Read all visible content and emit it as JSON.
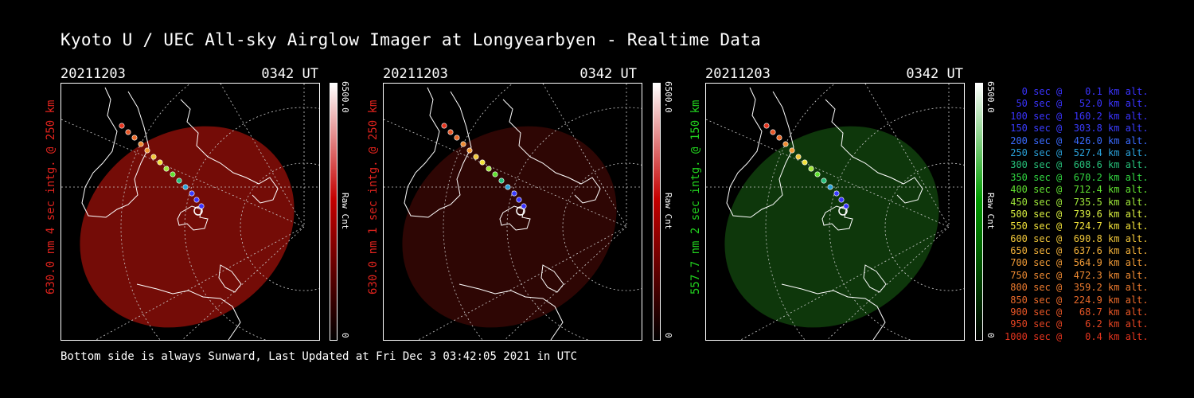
{
  "title": "Kyoto U / UEC All-sky Airglow Imager at Longyearbyen - Realtime Data",
  "footer": "Bottom side is always Sunward, Last Updated at Fri Dec  3 03:42:05 2021 in UTC",
  "panels": [
    {
      "date": "20211203",
      "time": "0342 UT",
      "side_label": "630.0 nm 4 sec intg. @ 250 km",
      "side_color": "#e0231d",
      "cbar_max": "6500.0",
      "cbar_min": "0",
      "cbar_unit": "Raw Cnt",
      "glow_color": "#7a0d07",
      "cbar_color": "#c40000"
    },
    {
      "date": "20211203",
      "time": "0342 UT",
      "side_label": "630.0 nm 1 sec intg. @ 250 km",
      "side_color": "#e0231d",
      "cbar_max": "6500.0",
      "cbar_min": "0",
      "cbar_unit": "Raw Cnt",
      "glow_color": "#300604",
      "cbar_color": "#c40000"
    },
    {
      "date": "20211203",
      "time": "0342 UT",
      "side_label": "557.7 nm 2 sec intg. @ 150 km",
      "side_color": "#21d11e",
      "cbar_max": "6500.0",
      "cbar_min": "0",
      "cbar_unit": "Raw Cnt",
      "glow_color": "#0f3a0c",
      "cbar_color": "#009a00"
    }
  ],
  "legend": [
    {
      "text": "   0 sec @    0.1 km alt.",
      "color": "#3a33ff"
    },
    {
      "text": "  50 sec @   52.0 km alt.",
      "color": "#3a33ff"
    },
    {
      "text": " 100 sec @  160.2 km alt.",
      "color": "#3a33ff"
    },
    {
      "text": " 150 sec @  303.8 km alt.",
      "color": "#3a3cff"
    },
    {
      "text": " 200 sec @  426.0 km alt.",
      "color": "#3a6bff"
    },
    {
      "text": " 250 sec @  527.4 km alt.",
      "color": "#2aa0d8"
    },
    {
      "text": " 300 sec @  608.6 km alt.",
      "color": "#26c07a"
    },
    {
      "text": " 350 sec @  670.2 km alt.",
      "color": "#30d640"
    },
    {
      "text": " 400 sec @  712.4 km alt.",
      "color": "#60e030"
    },
    {
      "text": " 450 sec @  735.5 km alt.",
      "color": "#a0e83a"
    },
    {
      "text": " 500 sec @  739.6 km alt.",
      "color": "#d8ee40"
    },
    {
      "text": " 550 sec @  724.7 km alt.",
      "color": "#f2e23a"
    },
    {
      "text": " 600 sec @  690.8 km alt.",
      "color": "#f2c83a"
    },
    {
      "text": " 650 sec @  637.6 km alt.",
      "color": "#f2b03a"
    },
    {
      "text": " 700 sec @  564.9 km alt.",
      "color": "#f09a36"
    },
    {
      "text": " 750 sec @  472.3 km alt.",
      "color": "#ee8a32"
    },
    {
      "text": " 800 sec @  359.2 km alt.",
      "color": "#ec7a2e"
    },
    {
      "text": " 850 sec @  224.9 km alt.",
      "color": "#ea6a2a"
    },
    {
      "text": " 900 sec @   68.7 km alt.",
      "color": "#e85626"
    },
    {
      "text": " 950 sec @    6.2 km alt.",
      "color": "#e64422"
    },
    {
      "text": "1000 sec @    0.4 km alt.",
      "color": "#e4341e"
    }
  ]
}
